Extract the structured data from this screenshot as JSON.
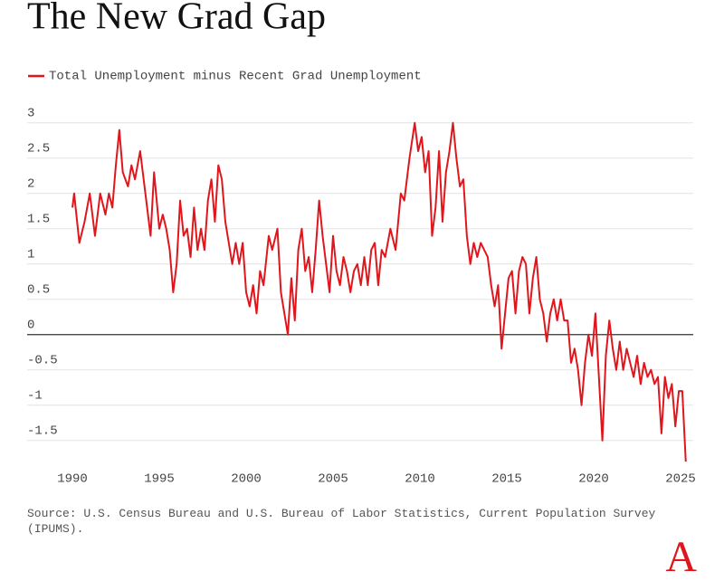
{
  "chart_data": {
    "type": "line",
    "title": "The New Grad Gap",
    "source": "Source: U.S. Census Bureau and U.S. Bureau of Labor Statistics, Current Population Survey (IPUMS).",
    "logo": "A",
    "xlim": [
      1990,
      2025
    ],
    "xticks": [
      1990,
      1995,
      2000,
      2005,
      2010,
      2015,
      2020,
      2025
    ],
    "ylim": [
      -1.85,
      3.1
    ],
    "yticks": [
      {
        "value": -1.5,
        "label": "-1.5"
      },
      {
        "value": -1,
        "label": "-1"
      },
      {
        "value": -0.5,
        "label": "-0.5"
      },
      0,
      0.5,
      1,
      1.5,
      2,
      2.5,
      3
    ],
    "grid": true,
    "legend": "top-left",
    "x": [
      1990.0,
      1990.1,
      1990.4,
      1990.7,
      1991.0,
      1991.3,
      1991.6,
      1991.9,
      1992.1,
      1992.3,
      1992.5,
      1992.7,
      1992.9,
      1993.2,
      1993.4,
      1993.6,
      1993.9,
      1994.2,
      1994.5,
      1994.7,
      1995.0,
      1995.2,
      1995.4,
      1995.6,
      1995.8,
      1996.0,
      1996.2,
      1996.4,
      1996.6,
      1996.8,
      1997.0,
      1997.2,
      1997.4,
      1997.6,
      1997.8,
      1998.0,
      1998.2,
      1998.4,
      1998.6,
      1998.8,
      1999.0,
      1999.2,
      1999.4,
      1999.6,
      1999.8,
      2000.0,
      2000.2,
      2000.4,
      2000.6,
      2000.8,
      2001.0,
      2001.3,
      2001.5,
      2001.8,
      2002.0,
      2002.2,
      2002.4,
      2002.6,
      2002.8,
      2003.0,
      2003.2,
      2003.4,
      2003.6,
      2003.8,
      2004.0,
      2004.2,
      2004.4,
      2004.6,
      2004.8,
      2005.0,
      2005.2,
      2005.4,
      2005.6,
      2005.8,
      2006.0,
      2006.2,
      2006.4,
      2006.6,
      2006.8,
      2007.0,
      2007.2,
      2007.4,
      2007.6,
      2007.8,
      2008.0,
      2008.3,
      2008.6,
      2008.9,
      2009.1,
      2009.4,
      2009.7,
      2009.9,
      2010.1,
      2010.3,
      2010.5,
      2010.7,
      2010.9,
      2011.1,
      2011.3,
      2011.5,
      2011.7,
      2011.9,
      2012.1,
      2012.3,
      2012.5,
      2012.7,
      2012.9,
      2013.1,
      2013.3,
      2013.5,
      2013.7,
      2013.9,
      2014.1,
      2014.3,
      2014.5,
      2014.7,
      2014.9,
      2015.1,
      2015.3,
      2015.5,
      2015.7,
      2015.9,
      2016.1,
      2016.3,
      2016.5,
      2016.7,
      2016.9,
      2017.1,
      2017.3,
      2017.5,
      2017.7,
      2017.9,
      2018.1,
      2018.3,
      2018.5,
      2018.7,
      2018.9,
      2019.1,
      2019.3,
      2019.5,
      2019.7,
      2019.9,
      2020.1,
      2020.3,
      2020.5,
      2020.7,
      2020.9,
      2021.1,
      2021.3,
      2021.5,
      2021.7,
      2021.9,
      2022.1,
      2022.3,
      2022.5,
      2022.7,
      2022.9,
      2023.1,
      2023.3,
      2023.5,
      2023.7,
      2023.9,
      2024.1,
      2024.3,
      2024.5,
      2024.7,
      2024.9,
      2025.1,
      2025.3
    ],
    "series": [
      {
        "name": "Total Unemployment minus Recent Grad Unemployment",
        "color": "#e0161d",
        "values": [
          1.8,
          2.0,
          1.3,
          1.6,
          2.0,
          1.4,
          2.0,
          1.7,
          2.0,
          1.8,
          2.4,
          2.9,
          2.3,
          2.1,
          2.4,
          2.2,
          2.6,
          2.0,
          1.4,
          2.3,
          1.5,
          1.7,
          1.5,
          1.2,
          0.6,
          1.0,
          1.9,
          1.4,
          1.5,
          1.1,
          1.8,
          1.2,
          1.5,
          1.2,
          1.9,
          2.2,
          1.6,
          2.4,
          2.2,
          1.6,
          1.3,
          1.0,
          1.3,
          1.0,
          1.3,
          0.6,
          0.4,
          0.7,
          0.3,
          0.9,
          0.7,
          1.4,
          1.2,
          1.5,
          0.6,
          0.3,
          0.0,
          0.8,
          0.2,
          1.2,
          1.5,
          0.9,
          1.1,
          0.6,
          1.2,
          1.9,
          1.4,
          1.0,
          0.6,
          1.4,
          0.9,
          0.7,
          1.1,
          0.9,
          0.6,
          0.9,
          1.0,
          0.7,
          1.1,
          0.7,
          1.2,
          1.3,
          0.7,
          1.2,
          1.1,
          1.5,
          1.2,
          2.0,
          1.9,
          2.5,
          3.0,
          2.6,
          2.8,
          2.3,
          2.6,
          1.4,
          1.8,
          2.6,
          1.6,
          2.3,
          2.6,
          3.0,
          2.5,
          2.1,
          2.2,
          1.4,
          1.0,
          1.3,
          1.1,
          1.3,
          1.2,
          1.1,
          0.7,
          0.4,
          0.7,
          -0.2,
          0.3,
          0.8,
          0.9,
          0.3,
          0.9,
          1.1,
          1.0,
          0.3,
          0.8,
          1.1,
          0.5,
          0.3,
          -0.1,
          0.3,
          0.5,
          0.2,
          0.5,
          0.2,
          0.2,
          -0.4,
          -0.2,
          -0.5,
          -1.0,
          -0.4,
          0.0,
          -0.3,
          0.3,
          -0.6,
          -1.5,
          -0.3,
          0.2,
          -0.2,
          -0.5,
          -0.1,
          -0.5,
          -0.2,
          -0.4,
          -0.6,
          -0.3,
          -0.7,
          -0.4,
          -0.6,
          -0.5,
          -0.7,
          -0.6,
          -1.4,
          -0.6,
          -0.9,
          -0.7,
          -1.3,
          -0.8,
          -0.8,
          -1.8
        ]
      }
    ]
  }
}
